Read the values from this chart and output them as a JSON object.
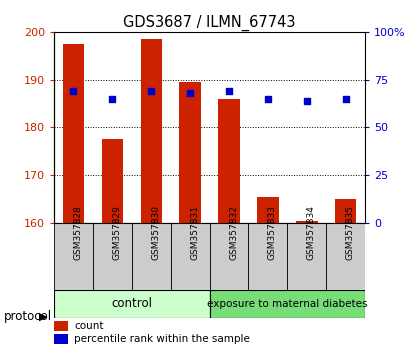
{
  "title": "GDS3687 / ILMN_67743",
  "samples": [
    "GSM357828",
    "GSM357829",
    "GSM357830",
    "GSM357831",
    "GSM357832",
    "GSM357833",
    "GSM357834",
    "GSM357835"
  ],
  "bar_values": [
    197.5,
    177.5,
    198.5,
    189.5,
    186.0,
    165.5,
    160.3,
    165.0
  ],
  "dot_values": [
    69,
    65,
    69,
    68,
    69,
    65,
    64,
    65
  ],
  "ylim": [
    160,
    200
  ],
  "yticks": [
    160,
    170,
    180,
    190,
    200
  ],
  "y2lim": [
    0,
    100
  ],
  "y2ticks": [
    0,
    25,
    50,
    75,
    100
  ],
  "y2ticklabels": [
    "0",
    "25",
    "50",
    "75",
    "100%"
  ],
  "bar_color": "#cc2200",
  "dot_color": "#0000cc",
  "bar_width": 0.55,
  "group1_label": "control",
  "group1_color": "#ccffcc",
  "group1_darker": "#99ee99",
  "group2_label": "exposure to maternal diabetes",
  "group2_color": "#77dd77",
  "protocol_label": "protocol",
  "legend_bar": "count",
  "legend_dot": "percentile rank within the sample",
  "tick_color_left": "#cc2200",
  "tick_color_right": "#0000cc",
  "sample_box_color": "#cccccc",
  "base_value": 160
}
